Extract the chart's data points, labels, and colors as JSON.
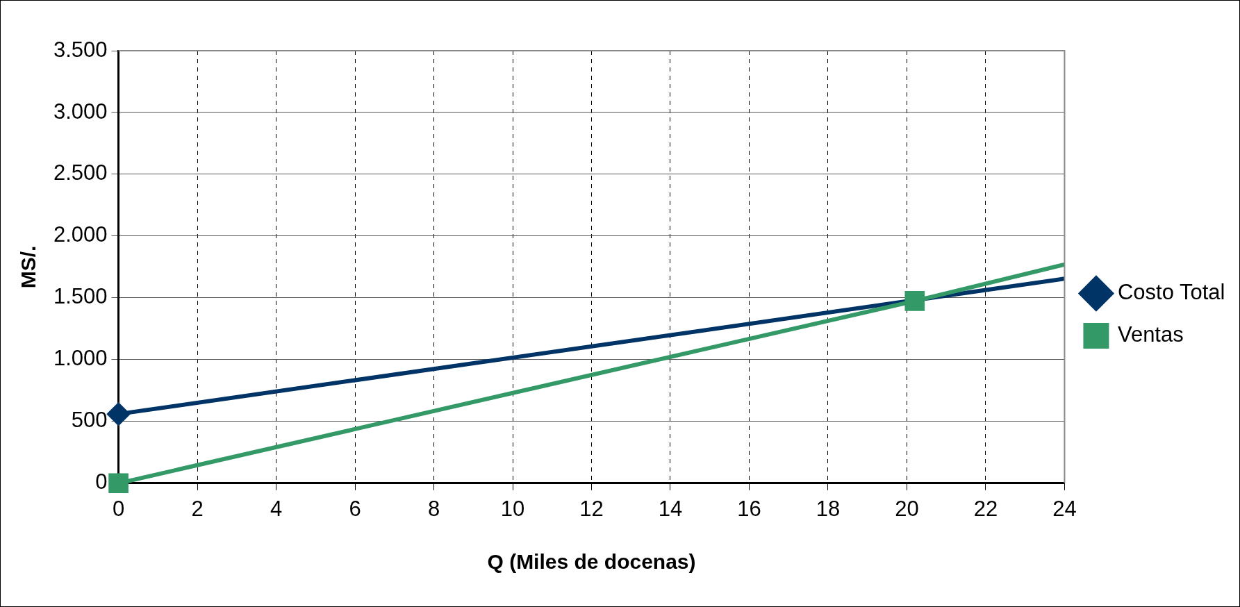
{
  "chart_data": {
    "type": "line",
    "xlabel": "Q (Miles de docenas)",
    "ylabel": "MS/.",
    "series": [
      {
        "name": "Costo Total",
        "color": "#003366",
        "marker": "diamond",
        "x": [
          0,
          20.2,
          24
        ],
        "values": [
          560,
          null,
          1655
        ]
      },
      {
        "name": "Ventas",
        "color": "#339966",
        "marker": "square",
        "x": [
          0,
          20.2,
          24
        ],
        "values": [
          0,
          1475,
          1770
        ]
      }
    ],
    "xlim": [
      0,
      24
    ],
    "xticks": [
      0,
      2,
      4,
      6,
      8,
      10,
      12,
      14,
      16,
      18,
      20,
      22,
      24
    ],
    "ylim": [
      0,
      3500
    ],
    "yticks": [
      {
        "value": 0,
        "label": "0"
      },
      {
        "value": 500,
        "label": "500"
      },
      {
        "value": 1000,
        "label": "1.000"
      },
      {
        "value": 1500,
        "label": "1.500"
      },
      {
        "value": 2000,
        "label": "2.000"
      },
      {
        "value": 2500,
        "label": "2.500"
      },
      {
        "value": 3000,
        "label": "3.000"
      },
      {
        "value": 3500,
        "label": "3.500"
      }
    ],
    "grid": true,
    "legend": "right",
    "line_style": "solid"
  }
}
